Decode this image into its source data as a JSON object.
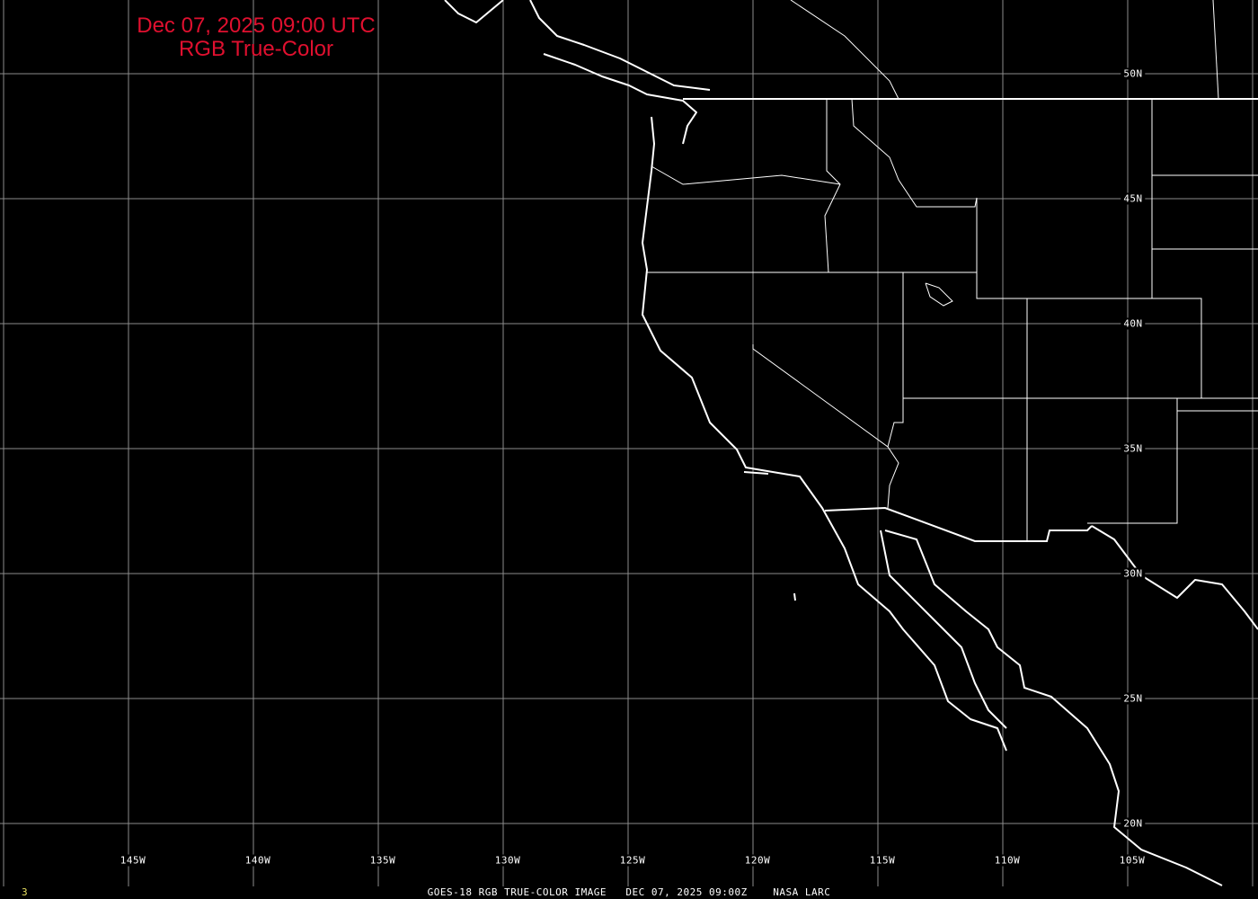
{
  "title": {
    "line1": "Dec 07, 2025 09:00 UTC",
    "line2": "RGB True-Color"
  },
  "latitude_labels": [
    "50N",
    "45N",
    "40N",
    "35N",
    "30N",
    "25N",
    "20N"
  ],
  "longitude_labels": [
    "145W",
    "140W",
    "135W",
    "130W",
    "125W",
    "120W",
    "115W",
    "110W",
    "105W"
  ],
  "caption": "GOES-18 RGB TRUE-COLOR IMAGE   DEC 07, 2025 09:00Z    NASA LARC",
  "frame_number": "3",
  "colors": {
    "title": "#e0102f",
    "grid": "#8c8c8c",
    "coast": "#ffffff",
    "background": "#000000",
    "frame_number": "#e8e060"
  }
}
